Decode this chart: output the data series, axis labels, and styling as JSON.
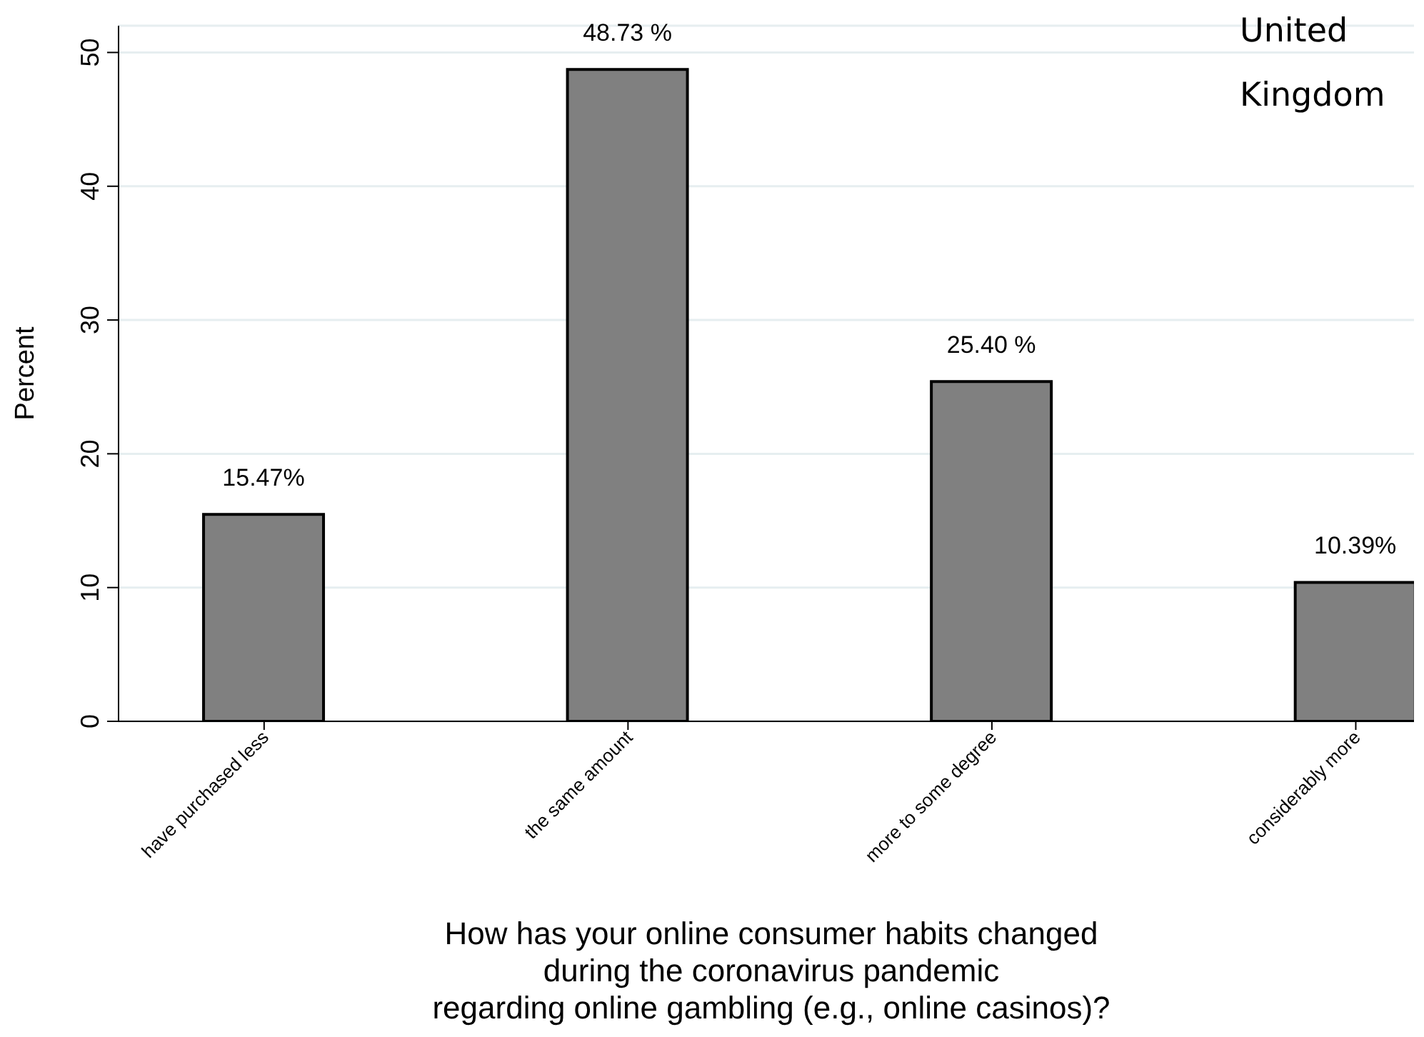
{
  "chart_data": {
    "type": "bar",
    "categories": [
      "have purchased less",
      "the same amount",
      "more to some degree",
      "considerably more"
    ],
    "values": [
      15.47,
      48.73,
      25.4,
      10.39
    ],
    "value_labels": [
      "15.47%",
      "48.73 %",
      "25.40 %",
      "10.39%"
    ],
    "color": "#808080",
    "ylabel": "Percent",
    "xlabel": "How has your online consumer habits changed\nduring the coronavirus pandemic\nregarding online gambling (e.g., online casinos)?",
    "annotations": [
      "United Kingdom"
    ],
    "ylim": [
      0,
      52
    ],
    "yticks": [
      0,
      10,
      20,
      30,
      40,
      50
    ],
    "grid": "y",
    "legend": false
  }
}
